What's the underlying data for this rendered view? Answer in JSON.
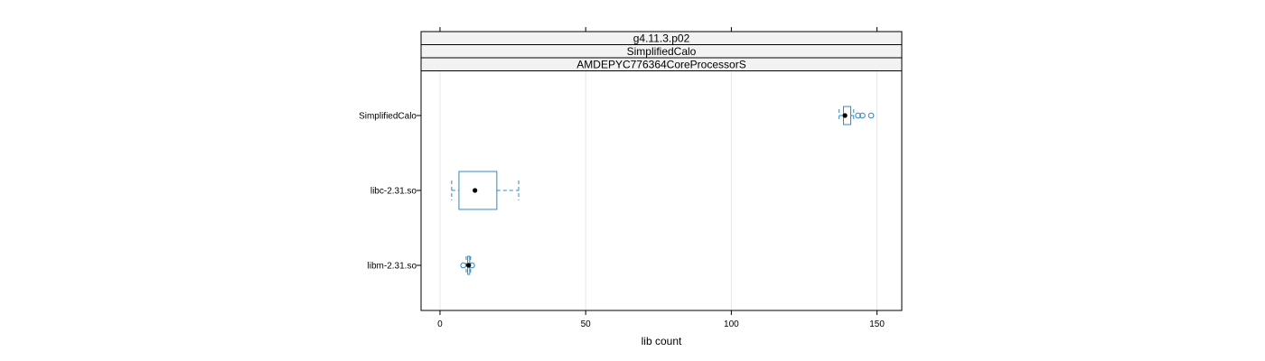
{
  "chart_data": {
    "type": "boxplot",
    "strips": [
      "g4.11.3.p02",
      "SimplifiedCalo",
      "AMDEPYC776364CoreProcessorS"
    ],
    "xlabel": "lib count",
    "xlim": [
      -6.5,
      158.5
    ],
    "xticks": [
      0,
      50,
      100,
      150
    ],
    "xtick_labels": [
      "0",
      "50",
      "100",
      "150"
    ],
    "grid": true,
    "colors": {
      "box": "#2b8cc4",
      "median": "#000000",
      "grid": "#e6e6e6",
      "strip_bg": "#f2f2f2"
    },
    "categories": [
      "SimplifiedCalo",
      "libc-2.31.so",
      "libm-2.31.so"
    ],
    "boxes": [
      {
        "label": "SimplifiedCalo",
        "whisker_low": 137,
        "q1": 138.5,
        "median": 139,
        "q3": 141,
        "whisker_high": 142,
        "outliers": [
          143.5,
          145,
          148
        ]
      },
      {
        "label": "libc-2.31.so",
        "whisker_low": 4,
        "q1": 6.5,
        "median": 12,
        "q3": 19.5,
        "whisker_high": 27,
        "outliers": []
      },
      {
        "label": "libm-2.31.so",
        "whisker_low": 9,
        "q1": 9.5,
        "median": 9.8,
        "q3": 10.2,
        "whisker_high": 10.5,
        "outliers": [
          8,
          11
        ]
      }
    ]
  }
}
